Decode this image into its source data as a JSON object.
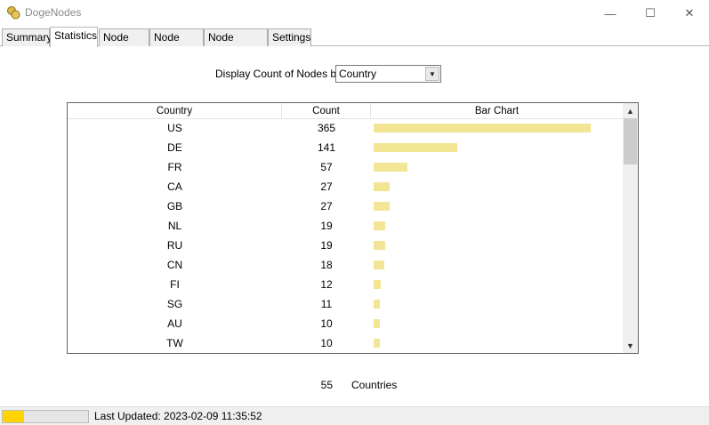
{
  "window": {
    "title": "DogeNodes",
    "icon": "doge-coin-icon",
    "controls": {
      "minimize": "—",
      "maximize": "☐",
      "close": "✕"
    }
  },
  "tabs": [
    {
      "label": "Summary",
      "active": false
    },
    {
      "label": "Statistics",
      "active": true
    },
    {
      "label": "Node List",
      "active": false
    },
    {
      "label": "Node Map",
      "active": false
    },
    {
      "label": "Node Status",
      "active": false
    },
    {
      "label": "Settings",
      "active": false
    }
  ],
  "statistics": {
    "display_label": "Display Count of Nodes by",
    "group_by": {
      "selected": "Country"
    },
    "columns": [
      "Country",
      "Count",
      "Bar Chart"
    ],
    "bar_color": "#f2e593",
    "rows": [
      {
        "country": "US",
        "count": "365"
      },
      {
        "country": "DE",
        "count": "141"
      },
      {
        "country": "FR",
        "count": "57"
      },
      {
        "country": "CA",
        "count": "27"
      },
      {
        "country": "GB",
        "count": "27"
      },
      {
        "country": "NL",
        "count": "19"
      },
      {
        "country": "RU",
        "count": "19"
      },
      {
        "country": "CN",
        "count": "18"
      },
      {
        "country": "FI",
        "count": "12"
      },
      {
        "country": "SG",
        "count": "11"
      },
      {
        "country": "AU",
        "count": "10"
      },
      {
        "country": "TW",
        "count": "10"
      }
    ],
    "total_count": "55",
    "total_label": "Countries"
  },
  "statusbar": {
    "progress": 0.25,
    "progress_color": "#ffd400",
    "last_updated": "Last Updated: 2023-02-09 11:35:52"
  }
}
